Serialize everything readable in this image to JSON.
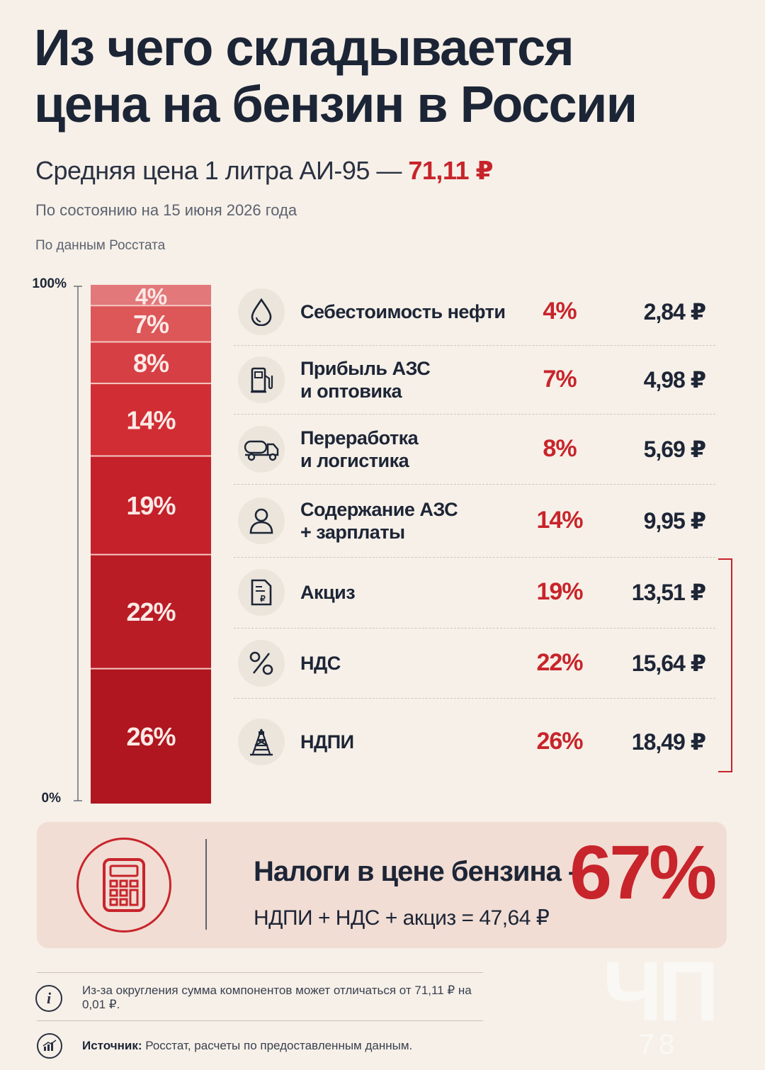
{
  "title_line1": "Из чего складывается",
  "title_line2": "цена на бензин в России",
  "subtitle_prefix": "Средняя цена 1 литра АИ-95 —",
  "subtitle_price": "71,11 ₽",
  "as_of": "По состоянию на 15 июня 2026 года",
  "data_source": "По данным Росстата",
  "chart_data": {
    "type": "stacked-bar",
    "axis": {
      "top_label": "100%",
      "bottom_label": "0%",
      "ylim": [
        0,
        100
      ]
    },
    "segments": [
      {
        "name": "Себестоимость нефти",
        "percent": 4,
        "percent_label": "4%",
        "value_label": "2,84 ₽",
        "color": "#e2787a",
        "icon": "oil-drop-icon"
      },
      {
        "name": "Прибыль АЗС\nи оптовика",
        "percent": 7,
        "percent_label": "7%",
        "value_label": "4,98 ₽",
        "color": "#dd5658",
        "icon": "fuel-pump-icon"
      },
      {
        "name": "Переработка\nи логистика",
        "percent": 8,
        "percent_label": "8%",
        "value_label": "5,69 ₽",
        "color": "#d63f44",
        "icon": "tanker-truck-icon"
      },
      {
        "name": "Содержание АЗС\n+ зарплаты",
        "percent": 14,
        "percent_label": "14%",
        "value_label": "9,95 ₽",
        "color": "#d02e34",
        "icon": "person-icon"
      },
      {
        "name": "Акциз",
        "percent": 19,
        "percent_label": "19%",
        "value_label": "13,51 ₽",
        "color": "#c4212a",
        "icon": "excise-document-icon"
      },
      {
        "name": "НДС",
        "percent": 22,
        "percent_label": "22%",
        "value_label": "15,64 ₽",
        "color": "#b91c25",
        "icon": "percent-icon"
      },
      {
        "name": "НДПИ",
        "percent": 26,
        "percent_label": "26%",
        "value_label": "18,49 ₽",
        "color": "#b0161f",
        "icon": "oil-derrick-icon"
      }
    ]
  },
  "tax_box": {
    "title": "Налоги в цене бензина –",
    "formula": "НДПИ + НДС + акциз = 47,64 ₽",
    "share": "67%",
    "icon": "calculator-icon"
  },
  "footer": {
    "note": "Из-за округления сумма компонентов может отличаться от 71,11 ₽ на 0,01 ₽.",
    "source_label": "Источник:",
    "source_text": "Росстат, расчеты по предоставленным данным."
  },
  "watermark": {
    "main": "ЧП",
    "sub": "78"
  },
  "colors": {
    "accent": "#c8242b",
    "text": "#1c2333",
    "background": "#f6f0e8",
    "tax_box": "#f1ddd4"
  }
}
